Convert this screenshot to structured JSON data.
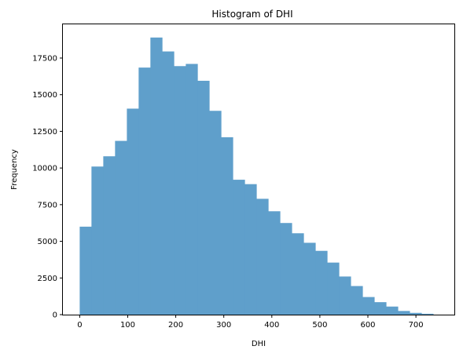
{
  "chart_data": {
    "type": "histogram",
    "title": "Histogram of DHI",
    "xlabel": "DHI",
    "ylabel": "Frequency",
    "xlim": [
      -35,
      780
    ],
    "ylim": [
      0,
      19800
    ],
    "xticks": [
      0,
      100,
      200,
      300,
      400,
      500,
      600,
      700
    ],
    "yticks": [
      0,
      2500,
      5000,
      7500,
      10000,
      12500,
      15000,
      17500
    ],
    "ytick_labels": [
      "0",
      "2500",
      "5000",
      "7500",
      "10000",
      "12500",
      "15000",
      "17500"
    ],
    "bar_color": "#5f9fcb",
    "grid": false,
    "bins": [
      {
        "x0": 0,
        "x1": 24.5,
        "value": 6000
      },
      {
        "x0": 24.5,
        "x1": 49.1,
        "value": 10100
      },
      {
        "x0": 49.1,
        "x1": 73.6,
        "value": 10800
      },
      {
        "x0": 73.6,
        "x1": 98.2,
        "value": 11850
      },
      {
        "x0": 98.2,
        "x1": 122.7,
        "value": 14050
      },
      {
        "x0": 122.7,
        "x1": 147.2,
        "value": 16850
      },
      {
        "x0": 147.2,
        "x1": 171.8,
        "value": 18900
      },
      {
        "x0": 171.8,
        "x1": 196.3,
        "value": 17950
      },
      {
        "x0": 196.3,
        "x1": 220.9,
        "value": 16950
      },
      {
        "x0": 220.9,
        "x1": 245.4,
        "value": 17100
      },
      {
        "x0": 245.4,
        "x1": 269.9,
        "value": 15950
      },
      {
        "x0": 269.9,
        "x1": 294.5,
        "value": 13900
      },
      {
        "x0": 294.5,
        "x1": 319.0,
        "value": 12100
      },
      {
        "x0": 319.0,
        "x1": 343.6,
        "value": 9200
      },
      {
        "x0": 343.6,
        "x1": 368.1,
        "value": 8900
      },
      {
        "x0": 368.1,
        "x1": 392.7,
        "value": 7900
      },
      {
        "x0": 392.7,
        "x1": 417.2,
        "value": 7050
      },
      {
        "x0": 417.2,
        "x1": 441.7,
        "value": 6250
      },
      {
        "x0": 441.7,
        "x1": 466.3,
        "value": 5550
      },
      {
        "x0": 466.3,
        "x1": 490.8,
        "value": 4900
      },
      {
        "x0": 490.8,
        "x1": 515.4,
        "value": 4350
      },
      {
        "x0": 515.4,
        "x1": 539.9,
        "value": 3550
      },
      {
        "x0": 539.9,
        "x1": 564.4,
        "value": 2600
      },
      {
        "x0": 564.4,
        "x1": 589.0,
        "value": 1950
      },
      {
        "x0": 589.0,
        "x1": 613.5,
        "value": 1200
      },
      {
        "x0": 613.5,
        "x1": 638.1,
        "value": 850
      },
      {
        "x0": 638.1,
        "x1": 662.6,
        "value": 550
      },
      {
        "x0": 662.6,
        "x1": 687.1,
        "value": 250
      },
      {
        "x0": 687.1,
        "x1": 711.7,
        "value": 120
      },
      {
        "x0": 711.7,
        "x1": 736.2,
        "value": 60
      }
    ]
  }
}
